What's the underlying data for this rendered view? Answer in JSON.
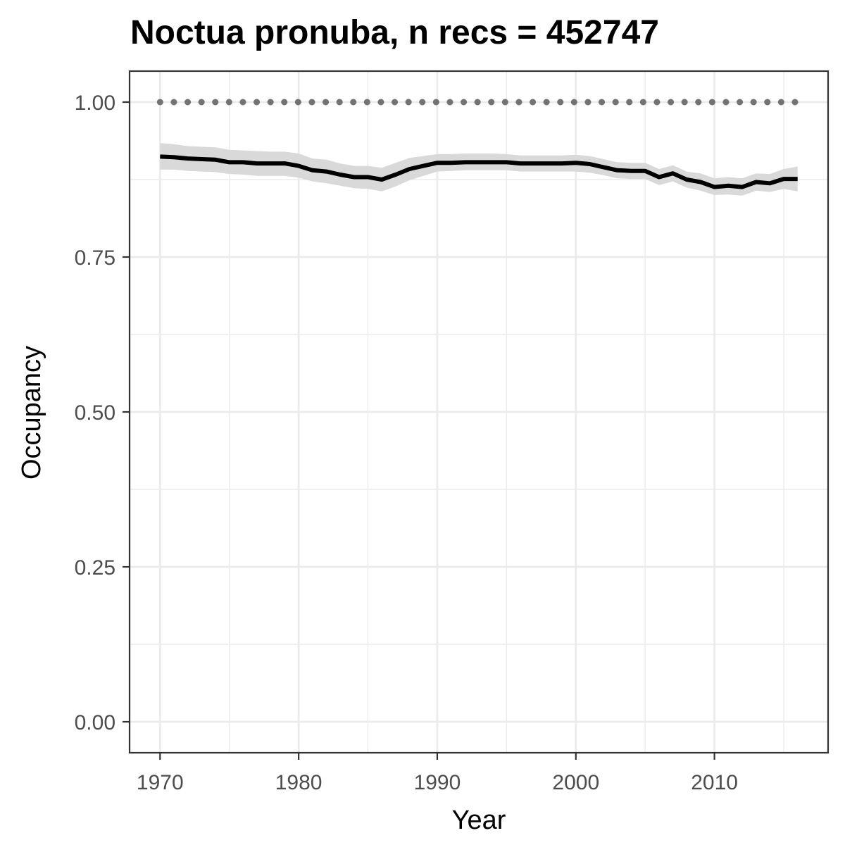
{
  "chart_data": {
    "type": "line",
    "title": "Noctua pronuba, n recs = 452747",
    "xlabel": "Year",
    "ylabel": "Occupancy",
    "xlim": [
      1967.8,
      2018.2
    ],
    "ylim": [
      -0.05,
      1.05
    ],
    "x_ticks": [
      1970,
      1980,
      1990,
      2000,
      2010
    ],
    "y_ticks": [
      0.0,
      0.25,
      0.5,
      0.75,
      1.0
    ],
    "x_tick_labels": [
      "1970",
      "1980",
      "1990",
      "2000",
      "2010"
    ],
    "y_tick_labels": [
      "0.00",
      "0.25",
      "0.50",
      "0.75",
      "1.00"
    ],
    "grid": true,
    "legend": "none",
    "colors": {
      "line": "#000000",
      "ribbon": "#d9d9d9",
      "reference": "#737373",
      "grid": "#ebebeb",
      "panel_border": "#333333"
    },
    "reference_line": {
      "y": 1.0,
      "style": "dotted",
      "x_range": [
        1970,
        2016
      ]
    },
    "x": [
      1970,
      1971,
      1972,
      1973,
      1974,
      1975,
      1976,
      1977,
      1978,
      1979,
      1980,
      1981,
      1982,
      1983,
      1984,
      1985,
      1986,
      1987,
      1988,
      1989,
      1990,
      1991,
      1992,
      1993,
      1994,
      1995,
      1996,
      1997,
      1998,
      1999,
      2000,
      2001,
      2002,
      2003,
      2004,
      2005,
      2006,
      2007,
      2008,
      2009,
      2010,
      2011,
      2012,
      2013,
      2014,
      2015,
      2016
    ],
    "series": [
      {
        "values": [
          0.912,
          0.911,
          0.909,
          0.908,
          0.907,
          0.903,
          0.903,
          0.901,
          0.901,
          0.901,
          0.897,
          0.89,
          0.888,
          0.883,
          0.879,
          0.879,
          0.875,
          0.883,
          0.892,
          0.897,
          0.902,
          0.902,
          0.903,
          0.903,
          0.903,
          0.903,
          0.901,
          0.901,
          0.901,
          0.901,
          0.902,
          0.9,
          0.895,
          0.89,
          0.889,
          0.889,
          0.879,
          0.885,
          0.875,
          0.871,
          0.863,
          0.865,
          0.863,
          0.871,
          0.869,
          0.876,
          0.876
        ],
        "lower": [
          0.891,
          0.891,
          0.889,
          0.888,
          0.887,
          0.884,
          0.883,
          0.881,
          0.881,
          0.881,
          0.878,
          0.872,
          0.869,
          0.865,
          0.861,
          0.86,
          0.856,
          0.864,
          0.874,
          0.881,
          0.888,
          0.889,
          0.89,
          0.89,
          0.89,
          0.89,
          0.888,
          0.888,
          0.888,
          0.888,
          0.888,
          0.886,
          0.882,
          0.877,
          0.876,
          0.876,
          0.866,
          0.872,
          0.862,
          0.857,
          0.85,
          0.851,
          0.849,
          0.857,
          0.855,
          0.86,
          0.856
        ],
        "upper": [
          0.934,
          0.932,
          0.929,
          0.928,
          0.927,
          0.923,
          0.922,
          0.921,
          0.92,
          0.92,
          0.917,
          0.909,
          0.907,
          0.901,
          0.897,
          0.897,
          0.894,
          0.902,
          0.91,
          0.913,
          0.916,
          0.916,
          0.917,
          0.917,
          0.917,
          0.916,
          0.914,
          0.914,
          0.914,
          0.914,
          0.915,
          0.913,
          0.908,
          0.903,
          0.902,
          0.902,
          0.892,
          0.898,
          0.888,
          0.885,
          0.877,
          0.879,
          0.877,
          0.885,
          0.884,
          0.892,
          0.896
        ]
      }
    ]
  }
}
